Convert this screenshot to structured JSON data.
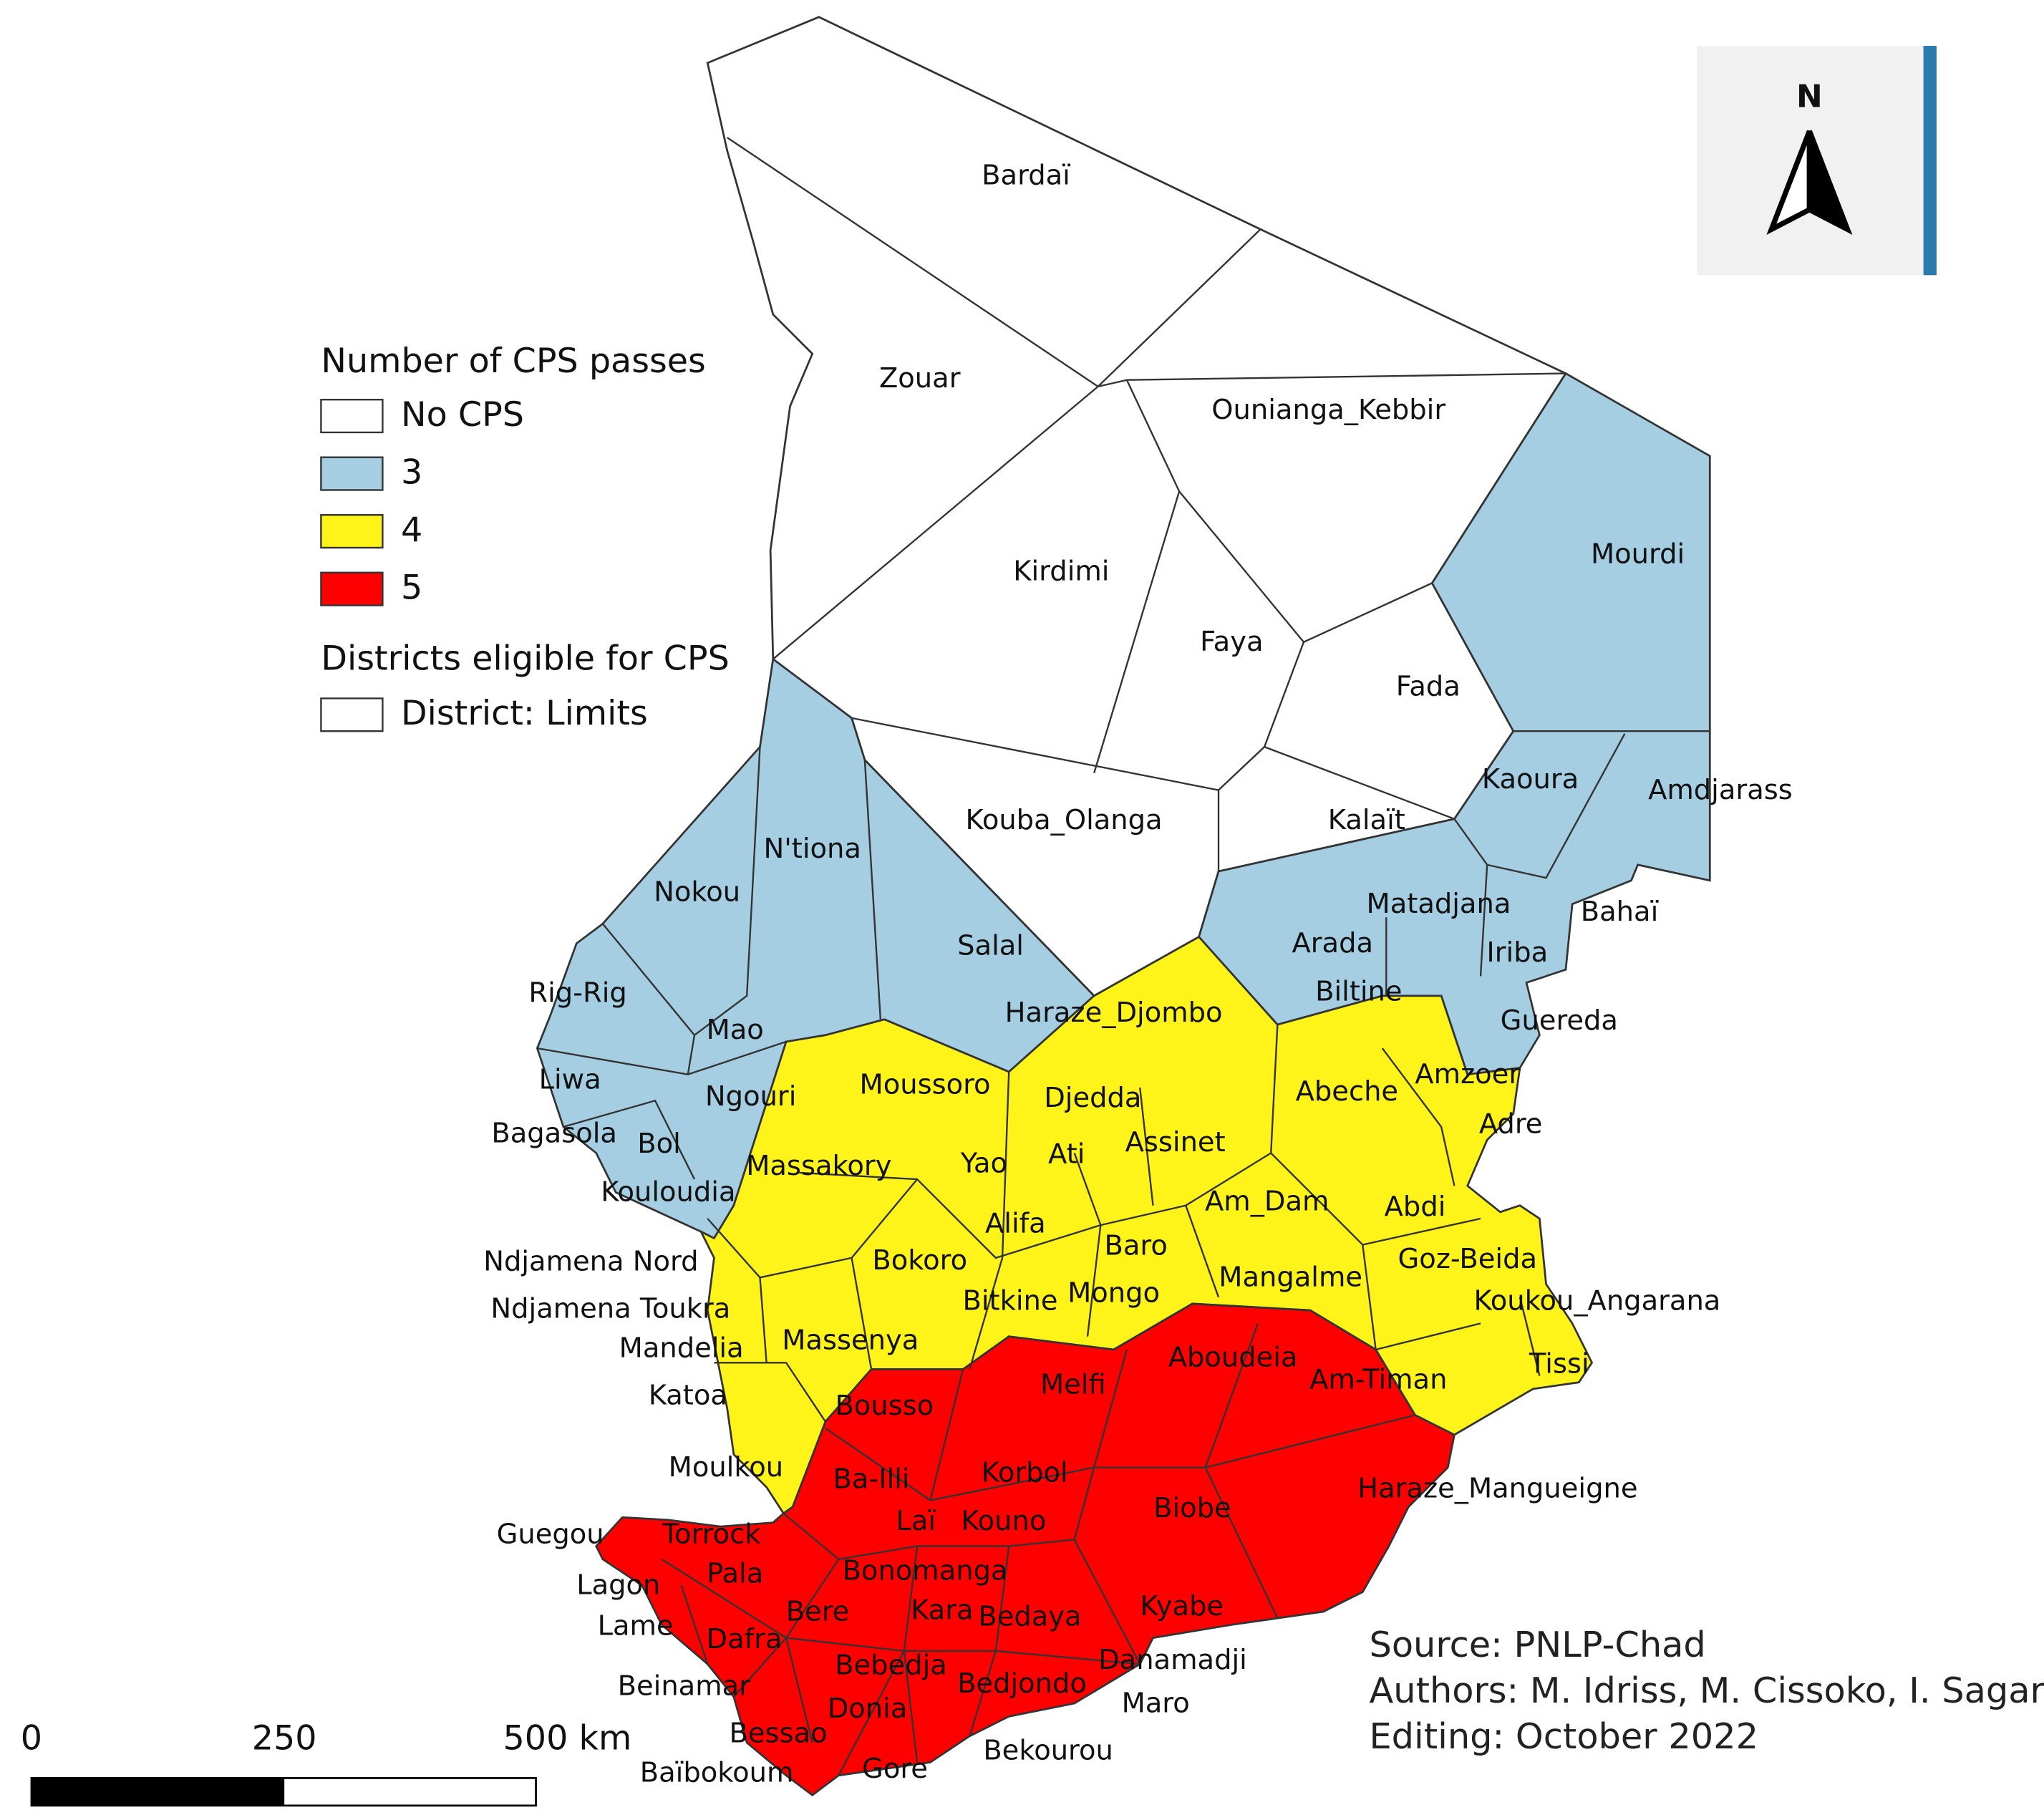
{
  "legend": {
    "title": "Number of CPS passes",
    "items": [
      {
        "label": "No CPS",
        "color": "#ffffff"
      },
      {
        "label": "3",
        "color": "#a6cee3"
      },
      {
        "label": "4",
        "color": "#fff41a"
      },
      {
        "label": "5",
        "color": "#ff0000"
      }
    ],
    "layer_title": "Districts eligible for CPS",
    "layer_item": "District: Limits"
  },
  "districts": [
    "Bardaï",
    "Zouar",
    "Ounianga_Kebbir",
    "Mourdi",
    "Kirdimi",
    "Faya",
    "Fada",
    "Kouba_Olanga",
    "Kalaït",
    "Kaoura",
    "Amdjarass",
    "N'tiona",
    "Nokou",
    "Matadjana",
    "Bahaï",
    "Salal",
    "Arada",
    "Iriba",
    "Rig-Rig",
    "Haraze_Djombo",
    "Biltine",
    "Guereda",
    "Mao",
    "Liwa",
    "Moussoro",
    "Djedda",
    "Abeche",
    "Amzoer",
    "Ngouri",
    "Bagasola",
    "Adre",
    "Bol",
    "Assinet",
    "Ati",
    "Yao",
    "Massakory",
    "Kouloudia",
    "Abdi",
    "Am_Dam",
    "Alifa",
    "Baro",
    "Ndjamena Nord",
    "Bokoro",
    "Goz-Beida",
    "Mongo",
    "Bitkine",
    "Mangalme",
    "Koukou_Angarana",
    "Ndjamena Toukra",
    "Mandelia",
    "Massenya",
    "Aboudeia",
    "Tissi",
    "Melfi",
    "Am-Timan",
    "Katoa",
    "Bousso",
    "Moulkou",
    "Korbol",
    "Ba-Illi",
    "Biobe",
    "Haraze_Mangueigne",
    "Laï",
    "Kouno",
    "Guegou",
    "Torrock",
    "Pala",
    "Bonomanga",
    "Lagon",
    "Bere",
    "Kara",
    "Bedaya",
    "Kyabe",
    "Lame",
    "Dafra",
    "Danamadji",
    "Bebedja",
    "Bedjondo",
    "Beinamar",
    "Maro",
    "Donia",
    "Bessao",
    "Bekourou",
    "Baïbokoum",
    "Gore"
  ],
  "scale_bar": {
    "labels": [
      "0",
      "250",
      "500 km"
    ]
  },
  "north_label": "N",
  "credits": [
    "Source: PNLP-Chad",
    "Authors: M. Idriss, M. Cissoko, I. Sagara",
    "Editing: October 2022"
  ]
}
